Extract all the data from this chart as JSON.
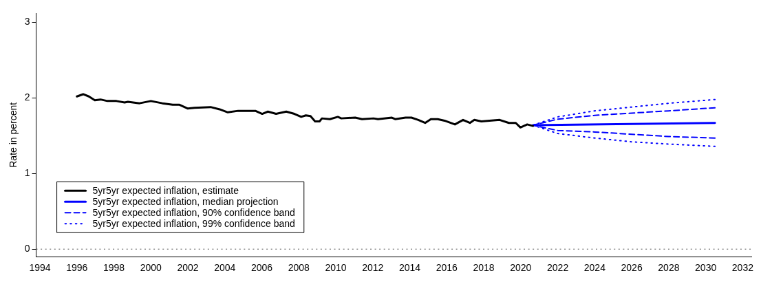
{
  "chart_data": {
    "type": "line",
    "ylabel": "Rate in percent",
    "xlim": [
      1993.8,
      2032.5
    ],
    "ylim": [
      -0.1,
      3.12
    ],
    "xticks": [
      1994,
      1996,
      1998,
      2000,
      2002,
      2004,
      2006,
      2008,
      2010,
      2012,
      2014,
      2016,
      2018,
      2020,
      2022,
      2024,
      2026,
      2028,
      2030,
      2032
    ],
    "yticks": [
      0,
      1,
      2,
      3
    ],
    "grid": false,
    "legend": "bottom left",
    "marker": "none",
    "ref_lines": [
      {
        "axis": "y",
        "value": 0,
        "color": "#555555",
        "line_style": "dotted"
      }
    ],
    "series": [
      {
        "name": "5yr5yr expected inflation, estimate",
        "color": "#000000",
        "line_style": "solid",
        "x": [
          1996.0,
          1996.34,
          1996.65,
          1996.97,
          1997.28,
          1997.65,
          1998.14,
          1998.58,
          1998.76,
          1999.39,
          2000.0,
          2000.62,
          2001.18,
          2001.55,
          2002.0,
          2002.36,
          2003.23,
          2003.72,
          2004.16,
          2004.72,
          2005.65,
          2006.02,
          2006.33,
          2006.77,
          2007.32,
          2007.76,
          2008.13,
          2008.38,
          2008.63,
          2008.88,
          2009.12,
          2009.25,
          2009.68,
          2010.11,
          2010.3,
          2011.05,
          2011.42,
          2012.04,
          2012.28,
          2013.03,
          2013.21,
          2013.77,
          2014.09,
          2014.46,
          2014.83,
          2015.14,
          2015.51,
          2015.88,
          2016.44,
          2016.88,
          2017.25,
          2017.49,
          2017.87,
          2018.86,
          2019.36,
          2019.73,
          2019.98,
          2020.35,
          2020.66
        ],
        "values": [
          2.02,
          2.05,
          2.02,
          1.97,
          1.98,
          1.96,
          1.96,
          1.94,
          1.95,
          1.93,
          1.96,
          1.93,
          1.91,
          1.91,
          1.86,
          1.87,
          1.88,
          1.85,
          1.81,
          1.83,
          1.83,
          1.79,
          1.82,
          1.79,
          1.82,
          1.79,
          1.75,
          1.77,
          1.76,
          1.69,
          1.69,
          1.73,
          1.72,
          1.75,
          1.73,
          1.74,
          1.72,
          1.73,
          1.72,
          1.74,
          1.72,
          1.74,
          1.74,
          1.71,
          1.67,
          1.72,
          1.72,
          1.7,
          1.65,
          1.71,
          1.67,
          1.71,
          1.69,
          1.71,
          1.67,
          1.67,
          1.61,
          1.65,
          1.63
        ]
      },
      {
        "name": "5yr5yr expected inflation, median projection",
        "color": "#0000ff",
        "line_style": "solid",
        "x": [
          2020.66,
          2030.5
        ],
        "values": [
          1.64,
          1.67
        ]
      },
      {
        "name": "5yr5yr expected inflation, 90% confidence band",
        "color": "#0000ff",
        "line_style": "dashed",
        "x": [
          2020.66,
          2022,
          2024,
          2026,
          2028,
          2030.5
        ],
        "values": [
          1.64,
          1.72,
          1.77,
          1.8,
          1.83,
          1.87
        ]
      },
      {
        "color": "#0000ff",
        "line_style": "dashed",
        "x": [
          2020.66,
          2022,
          2024,
          2026,
          2028,
          2030.5
        ],
        "values": [
          1.64,
          1.57,
          1.55,
          1.52,
          1.49,
          1.47
        ]
      },
      {
        "name": "5yr5yr expected inflation, 99% confidence band",
        "color": "#0000ff",
        "line_style": "dotted",
        "x": [
          2020.66,
          2022,
          2024,
          2026,
          2028,
          2030.5
        ],
        "values": [
          1.64,
          1.75,
          1.83,
          1.88,
          1.93,
          1.98
        ]
      },
      {
        "color": "#0000ff",
        "line_style": "dotted",
        "x": [
          2020.66,
          2022,
          2024,
          2026,
          2028,
          2030.5
        ],
        "values": [
          1.64,
          1.53,
          1.47,
          1.42,
          1.39,
          1.36
        ]
      }
    ]
  }
}
